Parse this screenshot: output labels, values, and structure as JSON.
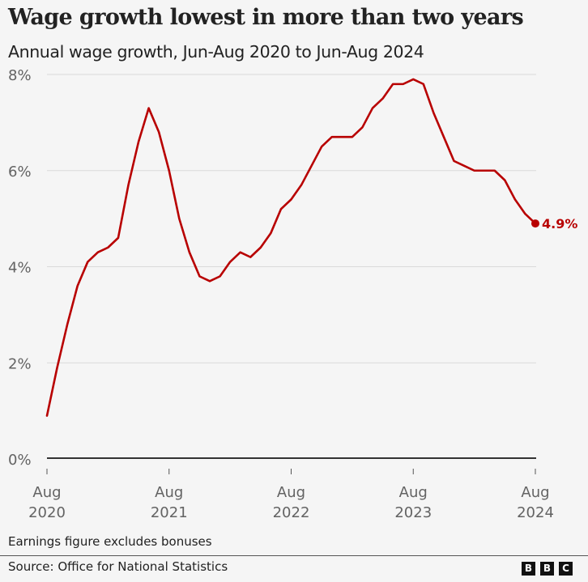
{
  "header": {
    "title": "Wage growth lowest in more than two years",
    "subtitle": "Annual wage growth, Jun-Aug 2020 to Jun-Aug 2024"
  },
  "footer": {
    "note": "Earnings figure excludes bonuses",
    "source": "Source: Office for National Statistics",
    "logo_letters": [
      "B",
      "B",
      "C"
    ]
  },
  "colors": {
    "line": "#b80000",
    "grid": "#d9d9d9",
    "axis": "#333333",
    "background": "#f5f5f5"
  },
  "chart_data": {
    "type": "line",
    "title": "Wage growth lowest in more than two years",
    "subtitle": "Annual wage growth, Jun-Aug 2020 to Jun-Aug 2024",
    "xlabel": "",
    "ylabel": "",
    "ylim": [
      0,
      8
    ],
    "y_ticks": [
      0,
      2,
      4,
      6,
      8
    ],
    "y_tick_labels": [
      "0%",
      "2%",
      "4%",
      "6%",
      "8%"
    ],
    "x_start": "Aug 2020",
    "x_end": "Aug 2024",
    "x_frequency": "monthly (rolling 3-month period ending)",
    "x_ticks": [
      {
        "index": 0,
        "line1": "Aug",
        "line2": "2020"
      },
      {
        "index": 12,
        "line1": "Aug",
        "line2": "2021"
      },
      {
        "index": 24,
        "line1": "Aug",
        "line2": "2022"
      },
      {
        "index": 36,
        "line1": "Aug",
        "line2": "2023"
      },
      {
        "index": 48,
        "line1": "Aug",
        "line2": "2024"
      }
    ],
    "grid": true,
    "legend": "none",
    "series": [
      {
        "name": "Annual wage growth (excluding bonuses)",
        "unit": "%",
        "values": [
          0.9,
          1.9,
          2.8,
          3.6,
          4.1,
          4.3,
          4.4,
          4.6,
          5.7,
          6.6,
          7.3,
          6.8,
          6.0,
          5.0,
          4.3,
          3.8,
          3.7,
          3.8,
          4.1,
          4.3,
          4.2,
          4.4,
          4.7,
          5.2,
          5.4,
          5.7,
          6.1,
          6.5,
          6.7,
          6.7,
          6.7,
          6.9,
          7.3,
          7.5,
          7.8,
          7.8,
          7.9,
          7.8,
          7.2,
          6.7,
          6.2,
          6.1,
          6.0,
          6.0,
          6.0,
          5.8,
          5.4,
          5.1,
          4.9
        ]
      }
    ],
    "annotations": [
      {
        "index": 48,
        "text": "4.9%",
        "marker": "dot"
      }
    ]
  }
}
